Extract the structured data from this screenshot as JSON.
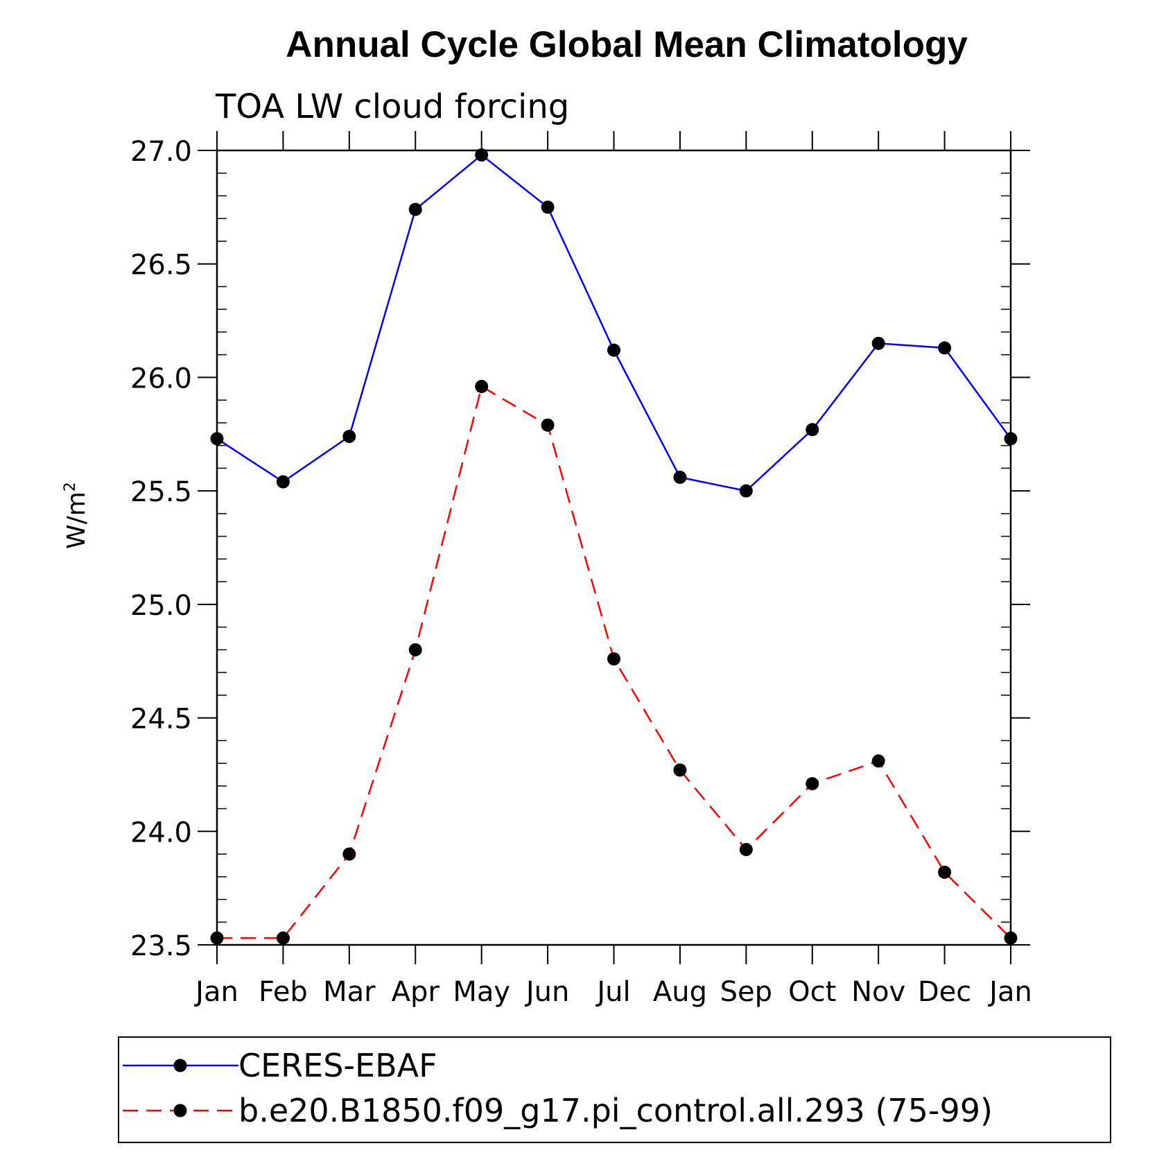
{
  "chart_data": {
    "type": "line",
    "title": "Annual Cycle Global Mean Climatology",
    "subtitle": "TOA LW cloud forcing",
    "ylabel": "W/m",
    "ylabel_superscript": "2",
    "xlabel": "",
    "categories": [
      "Jan",
      "Feb",
      "Mar",
      "Apr",
      "May",
      "Jun",
      "Jul",
      "Aug",
      "Sep",
      "Oct",
      "Nov",
      "Dec",
      "Jan"
    ],
    "ylim": [
      23.5,
      27.0
    ],
    "yticks": [
      "23.5",
      "24.0",
      "24.5",
      "25.0",
      "25.5",
      "26.0",
      "26.5",
      "27.0"
    ],
    "grid": false,
    "legend_position": "bottom",
    "series": [
      {
        "name": "CERES-EBAF",
        "color": "#0000ff",
        "dash": "solid",
        "marker": "filled-circle",
        "values": [
          25.73,
          25.54,
          25.74,
          26.74,
          26.98,
          26.75,
          26.12,
          25.56,
          25.5,
          25.77,
          26.15,
          26.13,
          25.73
        ]
      },
      {
        "name": "b.e20.B1850.f09_g17.pi_control.all.293 (75-99)",
        "color": "#ff0000",
        "dash": "dashed",
        "marker": "filled-circle",
        "values": [
          23.53,
          23.53,
          23.9,
          24.8,
          25.96,
          25.79,
          24.76,
          24.27,
          23.92,
          24.21,
          24.31,
          23.82,
          23.53
        ]
      }
    ]
  }
}
